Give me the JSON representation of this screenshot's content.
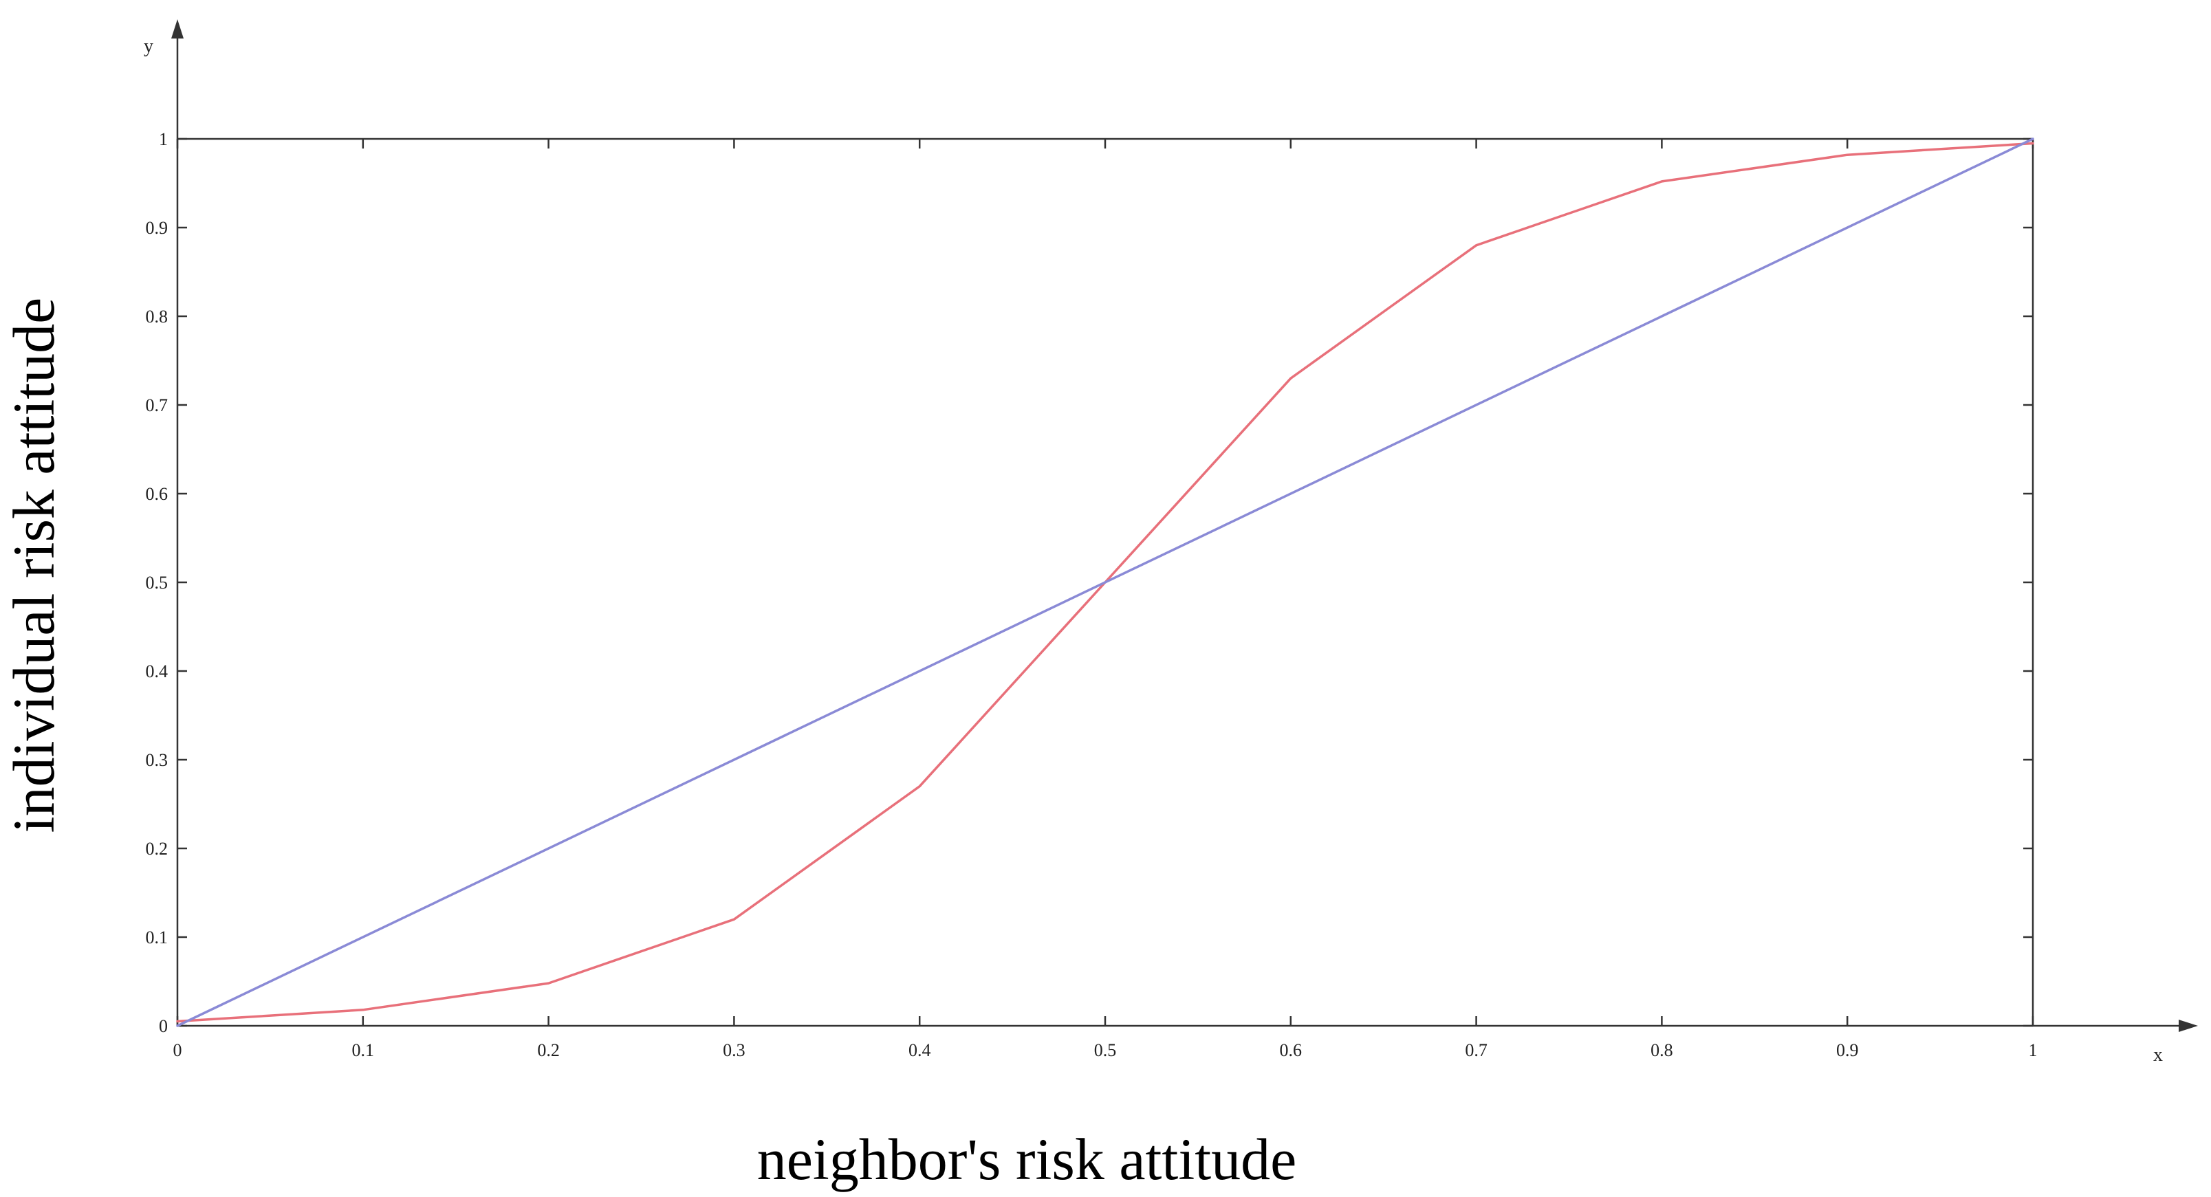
{
  "chart_data": {
    "type": "line",
    "title": "",
    "xlabel": "neighbor's risk attitude",
    "ylabel": "individual risk attitude",
    "x_axis_letter": "x",
    "y_axis_letter": "y",
    "xlim": [
      0,
      1
    ],
    "ylim": [
      0,
      1
    ],
    "xticks": [
      "0",
      "0.1",
      "0.2",
      "0.3",
      "0.4",
      "0.5",
      "0.6",
      "0.7",
      "0.8",
      "0.9",
      "1"
    ],
    "yticks": [
      "0",
      "0.1",
      "0.2",
      "0.3",
      "0.4",
      "0.5",
      "0.6",
      "0.7",
      "0.8",
      "0.9",
      "1"
    ],
    "grid": false,
    "legend": "none",
    "series": [
      {
        "color": "#e8707a",
        "x": [
          0,
          0.1,
          0.2,
          0.3,
          0.4,
          0.5,
          0.6,
          0.7,
          0.8,
          0.9,
          1.0
        ],
        "y": [
          0.005,
          0.018,
          0.048,
          0.12,
          0.27,
          0.5,
          0.73,
          0.88,
          0.952,
          0.982,
          0.995
        ]
      },
      {
        "color": "#8a8ad6",
        "x": [
          0,
          1
        ],
        "y": [
          0,
          1
        ]
      }
    ]
  }
}
